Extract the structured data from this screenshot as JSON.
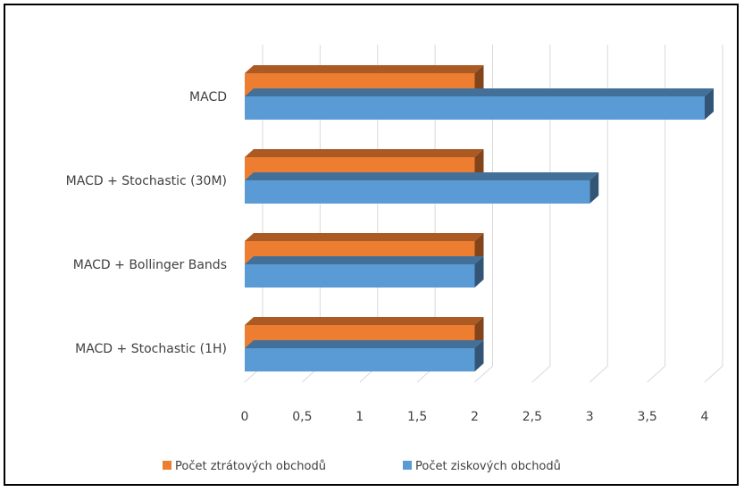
{
  "chart_data": {
    "type": "bar",
    "orientation": "horizontal",
    "style": "3d-clustered",
    "categories": [
      "MACD + Stochastic (1H)",
      "MACD + Bollinger Bands",
      "MACD + Stochastic (30M)",
      "MACD"
    ],
    "series": [
      {
        "name": "Počet ziskových obchodů",
        "values": [
          2,
          2,
          3,
          4
        ],
        "color": "#5b9bd5"
      },
      {
        "name": "Počet ztrátových obchodů",
        "values": [
          2,
          2,
          2,
          2
        ],
        "color": "#ed7d31"
      }
    ],
    "xlim": [
      0,
      4
    ],
    "x_ticks": [
      "0",
      "0,5",
      "1",
      "1,5",
      "2",
      "2,5",
      "3",
      "3,5",
      "4"
    ],
    "grid": true,
    "legend_position": "bottom",
    "legend_order": [
      "Počet ztrátových obchodů",
      "Počet ziskových obchodů"
    ]
  }
}
